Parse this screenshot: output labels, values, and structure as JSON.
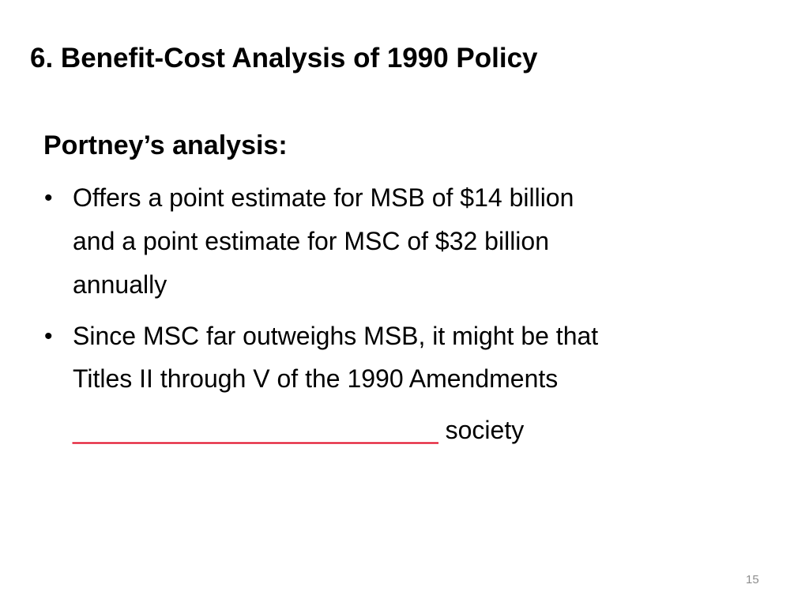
{
  "slide": {
    "title": "6. Benefit-Cost Analysis of 1990 Policy",
    "subtitle": "Portney’s analysis:",
    "bullets": [
      {
        "lines": [
          "Offers a point estimate for MSB of $14 billion",
          "and a point estimate for MSC of $32 billion",
          "annually"
        ]
      },
      {
        "lines": [
          "Since MSC far outweighs MSB, it might be that",
          "Titles II through V of the 1990 Amendments"
        ]
      }
    ],
    "blank": "__________________________",
    "blank_tail": "society",
    "page_number": "15"
  }
}
